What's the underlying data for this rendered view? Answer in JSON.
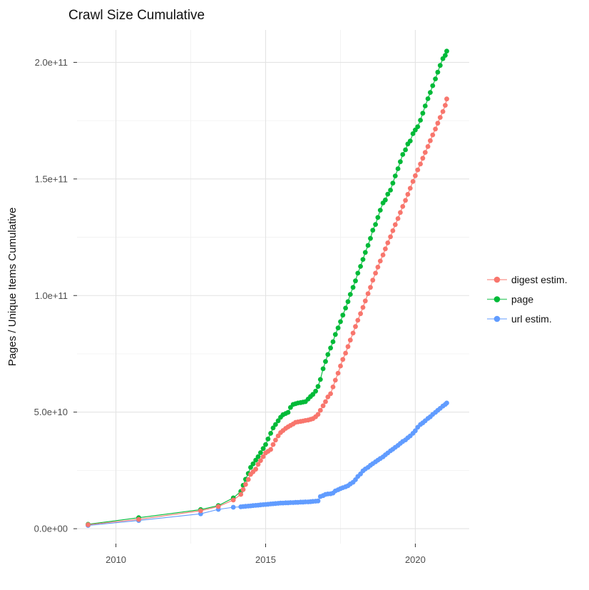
{
  "page": {
    "background": "#ffffff"
  },
  "chart_data": {
    "type": "line",
    "title": "Crawl Size Cumulative",
    "xlabel": "",
    "ylabel": "Pages / Unique Items Cumulative",
    "value_unit": "1e9 (billions) of pages / unique items",
    "grid": true,
    "legend_position": "right",
    "x_axis": {
      "major_ticks": [
        2010,
        2015,
        2020
      ],
      "major_tick_labels": [
        "2010",
        "2015",
        "2020"
      ],
      "minor_ticks": [
        2012.5,
        2017.5
      ],
      "range": [
        2008.7,
        2021.8
      ]
    },
    "y_axis": {
      "major_ticks": [
        0,
        50,
        100,
        150,
        200
      ],
      "major_tick_labels": [
        "0.0e+00",
        "5.0e+10",
        "1.0e+11",
        "1.5e+11",
        "2.0e+11"
      ],
      "minor_ticks": [
        25,
        75,
        125,
        175
      ],
      "range": [
        -6.4,
        213.9
      ]
    },
    "series": [
      {
        "name": "digest estim.",
        "color": "#F8766D",
        "points": [
          [
            2009.07,
            1.7
          ],
          [
            2010.76,
            4.0
          ],
          [
            2012.83,
            7.7
          ],
          [
            2013.42,
            9.5
          ],
          [
            2013.92,
            12.3
          ],
          [
            2014.17,
            14.7
          ],
          [
            2014.25,
            16.8
          ],
          [
            2014.33,
            19.0
          ],
          [
            2014.42,
            21.1
          ],
          [
            2014.5,
            23.3
          ],
          [
            2014.58,
            24.4
          ],
          [
            2014.67,
            25.5
          ],
          [
            2014.75,
            27.6
          ],
          [
            2014.83,
            29.2
          ],
          [
            2014.92,
            30.9
          ],
          [
            2015.0,
            32.5
          ],
          [
            2015.08,
            33.2
          ],
          [
            2015.17,
            34.0
          ],
          [
            2015.25,
            36.1
          ],
          [
            2015.33,
            38.0
          ],
          [
            2015.42,
            39.8
          ],
          [
            2015.5,
            41.2
          ],
          [
            2015.58,
            42.1
          ],
          [
            2015.67,
            43.0
          ],
          [
            2015.75,
            43.7
          ],
          [
            2015.83,
            44.3
          ],
          [
            2015.92,
            44.9
          ],
          [
            2016.0,
            45.6
          ],
          [
            2016.08,
            45.8
          ],
          [
            2016.17,
            46.0
          ],
          [
            2016.25,
            46.2
          ],
          [
            2016.33,
            46.4
          ],
          [
            2016.42,
            46.6
          ],
          [
            2016.5,
            46.9
          ],
          [
            2016.58,
            47.2
          ],
          [
            2016.67,
            48.0
          ],
          [
            2016.75,
            49.0
          ],
          [
            2016.83,
            50.8
          ],
          [
            2016.92,
            52.7
          ],
          [
            2017.0,
            54.5
          ],
          [
            2017.08,
            56.5
          ],
          [
            2017.17,
            57.9
          ],
          [
            2017.25,
            60.8
          ],
          [
            2017.33,
            63.7
          ],
          [
            2017.42,
            66.7
          ],
          [
            2017.5,
            69.8
          ],
          [
            2017.58,
            72.6
          ],
          [
            2017.67,
            75.3
          ],
          [
            2017.75,
            78.1
          ],
          [
            2017.83,
            80.9
          ],
          [
            2017.92,
            83.9
          ],
          [
            2018.0,
            86.7
          ],
          [
            2018.08,
            89.4
          ],
          [
            2018.17,
            92.2
          ],
          [
            2018.25,
            94.9
          ],
          [
            2018.33,
            97.7
          ],
          [
            2018.42,
            100.8
          ],
          [
            2018.5,
            103.5
          ],
          [
            2018.58,
            106.6
          ],
          [
            2018.67,
            109.6
          ],
          [
            2018.75,
            112.2
          ],
          [
            2018.83,
            114.8
          ],
          [
            2018.92,
            117.4
          ],
          [
            2019.0,
            120.0
          ],
          [
            2019.08,
            122.6
          ],
          [
            2019.17,
            125.2
          ],
          [
            2019.25,
            127.8
          ],
          [
            2019.33,
            130.4
          ],
          [
            2019.42,
            133.0
          ],
          [
            2019.5,
            135.6
          ],
          [
            2019.58,
            138.2
          ],
          [
            2019.67,
            140.8
          ],
          [
            2019.75,
            143.4
          ],
          [
            2019.83,
            146.0
          ],
          [
            2019.92,
            148.9
          ],
          [
            2020.0,
            151.4
          ],
          [
            2020.08,
            153.9
          ],
          [
            2020.17,
            156.4
          ],
          [
            2020.25,
            158.9
          ],
          [
            2020.33,
            161.4
          ],
          [
            2020.42,
            163.9
          ],
          [
            2020.5,
            166.4
          ],
          [
            2020.58,
            168.9
          ],
          [
            2020.67,
            171.4
          ],
          [
            2020.75,
            173.9
          ],
          [
            2020.83,
            176.4
          ],
          [
            2020.92,
            178.9
          ],
          [
            2021.0,
            181.6
          ],
          [
            2021.05,
            184.3
          ]
        ]
      },
      {
        "name": "page",
        "color": "#00BA38",
        "points": [
          [
            2009.07,
            1.9
          ],
          [
            2010.76,
            4.7
          ],
          [
            2012.83,
            8.2
          ],
          [
            2013.42,
            9.9
          ],
          [
            2013.92,
            13.2
          ],
          [
            2014.17,
            16.0
          ],
          [
            2014.25,
            18.6
          ],
          [
            2014.33,
            21.2
          ],
          [
            2014.42,
            23.7
          ],
          [
            2014.5,
            26.3
          ],
          [
            2014.58,
            27.8
          ],
          [
            2014.67,
            29.4
          ],
          [
            2014.75,
            30.9
          ],
          [
            2014.83,
            32.6
          ],
          [
            2014.92,
            34.4
          ],
          [
            2015.0,
            36.1
          ],
          [
            2015.08,
            38.5
          ],
          [
            2015.17,
            40.9
          ],
          [
            2015.25,
            43.2
          ],
          [
            2015.33,
            44.7
          ],
          [
            2015.42,
            46.3
          ],
          [
            2015.5,
            47.8
          ],
          [
            2015.58,
            48.9
          ],
          [
            2015.67,
            49.4
          ],
          [
            2015.75,
            49.9
          ],
          [
            2015.83,
            52.0
          ],
          [
            2015.92,
            53.3
          ],
          [
            2016.0,
            53.6
          ],
          [
            2016.08,
            53.9
          ],
          [
            2016.17,
            54.1
          ],
          [
            2016.25,
            54.3
          ],
          [
            2016.33,
            54.5
          ],
          [
            2016.42,
            55.6
          ],
          [
            2016.5,
            56.7
          ],
          [
            2016.58,
            57.6
          ],
          [
            2016.67,
            59.0
          ],
          [
            2016.75,
            61.0
          ],
          [
            2016.83,
            64.0
          ],
          [
            2016.92,
            68.6
          ],
          [
            2017.0,
            71.7
          ],
          [
            2017.08,
            74.7
          ],
          [
            2017.17,
            77.5
          ],
          [
            2017.25,
            80.2
          ],
          [
            2017.33,
            83.3
          ],
          [
            2017.42,
            86.1
          ],
          [
            2017.5,
            88.8
          ],
          [
            2017.58,
            91.6
          ],
          [
            2017.67,
            94.6
          ],
          [
            2017.75,
            97.4
          ],
          [
            2017.83,
            100.5
          ],
          [
            2017.92,
            103.5
          ],
          [
            2018.0,
            106.3
          ],
          [
            2018.08,
            109.6
          ],
          [
            2018.17,
            112.5
          ],
          [
            2018.25,
            115.5
          ],
          [
            2018.33,
            118.5
          ],
          [
            2018.42,
            121.5
          ],
          [
            2018.5,
            124.5
          ],
          [
            2018.58,
            128.0
          ],
          [
            2018.67,
            130.5
          ],
          [
            2018.75,
            133.5
          ],
          [
            2018.83,
            136.6
          ],
          [
            2018.92,
            139.7
          ],
          [
            2019.0,
            141.0
          ],
          [
            2019.08,
            143.5
          ],
          [
            2019.17,
            145.2
          ],
          [
            2019.25,
            148.2
          ],
          [
            2019.33,
            151.3
          ],
          [
            2019.42,
            154.4
          ],
          [
            2019.5,
            157.4
          ],
          [
            2019.58,
            160.5
          ],
          [
            2019.67,
            162.5
          ],
          [
            2019.75,
            165.0
          ],
          [
            2019.83,
            166.3
          ],
          [
            2019.92,
            169.4
          ],
          [
            2020.0,
            171.0
          ],
          [
            2020.08,
            172.4
          ],
          [
            2020.17,
            175.2
          ],
          [
            2020.25,
            178.2
          ],
          [
            2020.33,
            181.3
          ],
          [
            2020.42,
            184.4
          ],
          [
            2020.5,
            187.1
          ],
          [
            2020.58,
            190.0
          ],
          [
            2020.67,
            192.9
          ],
          [
            2020.75,
            195.8
          ],
          [
            2020.83,
            198.7
          ],
          [
            2020.92,
            201.6
          ],
          [
            2021.0,
            203.0
          ],
          [
            2021.05,
            204.8
          ]
        ]
      },
      {
        "name": "url estim.",
        "color": "#619CFF",
        "points": [
          [
            2009.07,
            1.4
          ],
          [
            2010.76,
            3.5
          ],
          [
            2012.83,
            6.4
          ],
          [
            2013.42,
            8.3
          ],
          [
            2013.92,
            9.2
          ],
          [
            2014.17,
            9.4
          ],
          [
            2014.25,
            9.5
          ],
          [
            2014.33,
            9.6
          ],
          [
            2014.42,
            9.7
          ],
          [
            2014.5,
            9.8
          ],
          [
            2014.58,
            9.9
          ],
          [
            2014.67,
            10.0
          ],
          [
            2014.75,
            10.1
          ],
          [
            2014.83,
            10.2
          ],
          [
            2014.92,
            10.3
          ],
          [
            2015.0,
            10.4
          ],
          [
            2015.08,
            10.5
          ],
          [
            2015.17,
            10.6
          ],
          [
            2015.25,
            10.7
          ],
          [
            2015.33,
            10.8
          ],
          [
            2015.42,
            10.9
          ],
          [
            2015.5,
            11.0
          ],
          [
            2015.58,
            11.0
          ],
          [
            2015.67,
            11.1
          ],
          [
            2015.75,
            11.1
          ],
          [
            2015.83,
            11.2
          ],
          [
            2015.92,
            11.2
          ],
          [
            2016.0,
            11.3
          ],
          [
            2016.08,
            11.3
          ],
          [
            2016.17,
            11.4
          ],
          [
            2016.25,
            11.4
          ],
          [
            2016.33,
            11.5
          ],
          [
            2016.42,
            11.5
          ],
          [
            2016.5,
            11.6
          ],
          [
            2016.58,
            11.7
          ],
          [
            2016.67,
            11.8
          ],
          [
            2016.75,
            11.9
          ],
          [
            2016.83,
            13.8
          ],
          [
            2016.92,
            14.2
          ],
          [
            2017.0,
            14.7
          ],
          [
            2017.08,
            14.9
          ],
          [
            2017.17,
            15.0
          ],
          [
            2017.25,
            15.3
          ],
          [
            2017.33,
            16.2
          ],
          [
            2017.42,
            16.7
          ],
          [
            2017.5,
            17.2
          ],
          [
            2017.58,
            17.6
          ],
          [
            2017.67,
            18.0
          ],
          [
            2017.75,
            18.4
          ],
          [
            2017.83,
            19.2
          ],
          [
            2017.92,
            19.9
          ],
          [
            2018.0,
            21.0
          ],
          [
            2018.08,
            22.4
          ],
          [
            2018.17,
            23.5
          ],
          [
            2018.25,
            24.8
          ],
          [
            2018.33,
            25.6
          ],
          [
            2018.42,
            26.3
          ],
          [
            2018.5,
            27.2
          ],
          [
            2018.58,
            27.9
          ],
          [
            2018.67,
            28.7
          ],
          [
            2018.75,
            29.4
          ],
          [
            2018.83,
            30.1
          ],
          [
            2018.92,
            30.8
          ],
          [
            2019.0,
            31.7
          ],
          [
            2019.08,
            32.5
          ],
          [
            2019.17,
            33.4
          ],
          [
            2019.25,
            34.1
          ],
          [
            2019.33,
            34.9
          ],
          [
            2019.42,
            35.7
          ],
          [
            2019.5,
            36.6
          ],
          [
            2019.58,
            37.4
          ],
          [
            2019.67,
            38.1
          ],
          [
            2019.75,
            39.0
          ],
          [
            2019.83,
            39.8
          ],
          [
            2019.92,
            40.9
          ],
          [
            2020.0,
            42.0
          ],
          [
            2020.08,
            43.5
          ],
          [
            2020.17,
            44.7
          ],
          [
            2020.25,
            45.4
          ],
          [
            2020.33,
            46.3
          ],
          [
            2020.42,
            47.3
          ],
          [
            2020.5,
            48.0
          ],
          [
            2020.58,
            49.0
          ],
          [
            2020.67,
            49.9
          ],
          [
            2020.75,
            50.8
          ],
          [
            2020.83,
            51.6
          ],
          [
            2020.92,
            52.6
          ],
          [
            2021.0,
            53.3
          ],
          [
            2021.05,
            53.9
          ]
        ]
      }
    ]
  }
}
